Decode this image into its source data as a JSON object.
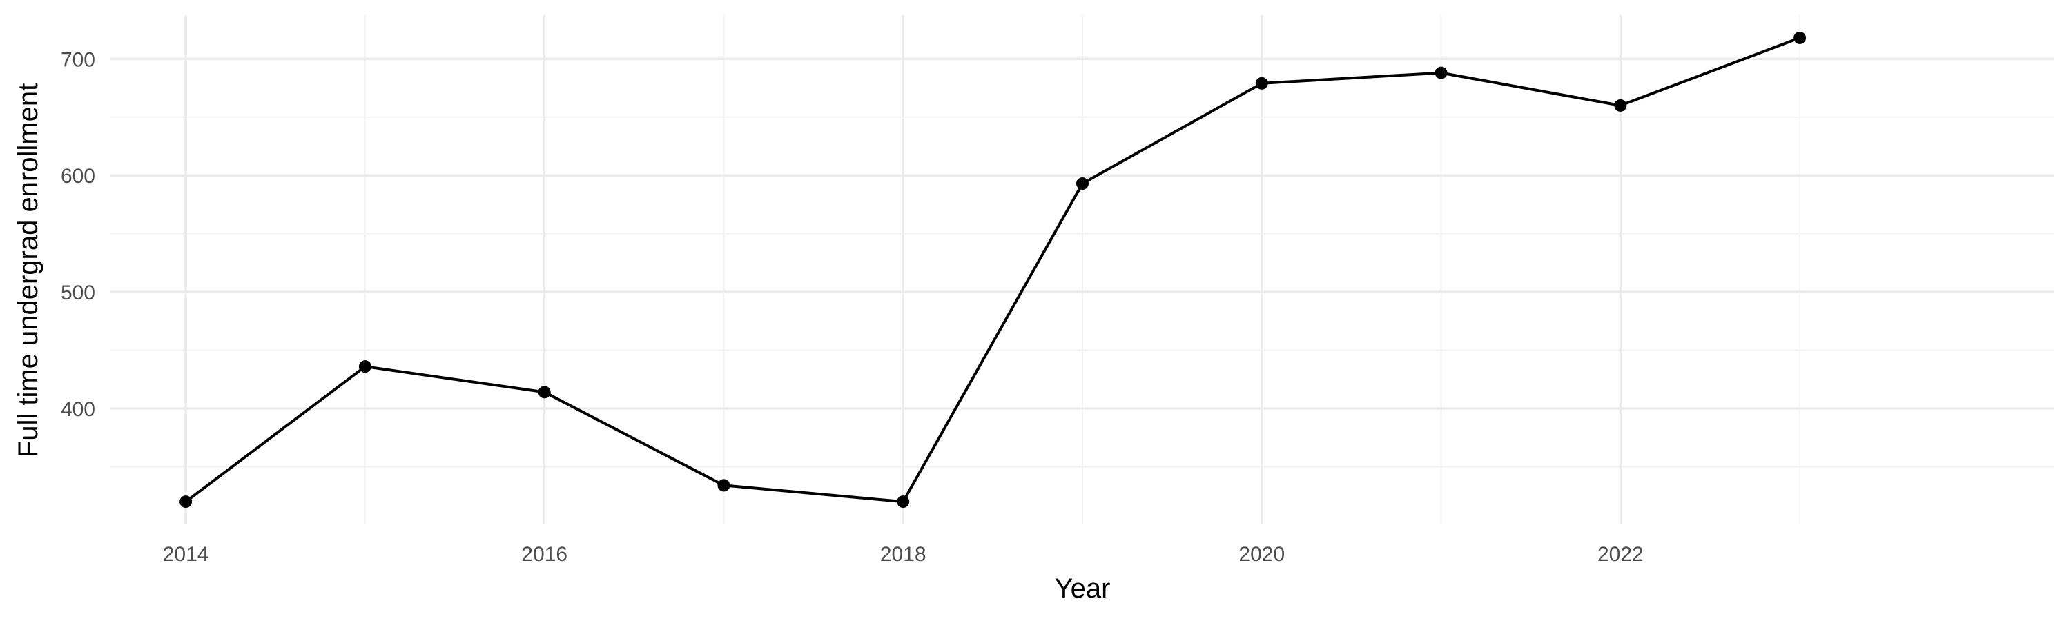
{
  "chart_data": {
    "type": "line",
    "title": "",
    "xlabel": "Year",
    "ylabel": "Full time undergrad enrollment",
    "x": [
      2014,
      2015,
      2016,
      2017,
      2018,
      2019,
      2020,
      2021,
      2022,
      2023
    ],
    "series": [
      {
        "values": [
          320,
          436,
          414,
          334,
          320,
          593,
          679,
          688,
          660,
          718
        ]
      }
    ],
    "xlim": [
      2013.58,
      2024.42
    ],
    "ylim": [
      300.5,
      737.5
    ],
    "x_ticks": [
      2014,
      2016,
      2018,
      2020,
      2022
    ],
    "x_tick_labels": [
      "2014",
      "2016",
      "2018",
      "2020",
      "2022"
    ],
    "y_ticks": [
      400,
      500,
      600,
      700
    ],
    "y_tick_labels": [
      "400",
      "500",
      "600",
      "700"
    ],
    "grid": true,
    "legend": false,
    "colors": {
      "line": "#000000",
      "grid": "#ebebeb",
      "background": "#ffffff"
    }
  }
}
